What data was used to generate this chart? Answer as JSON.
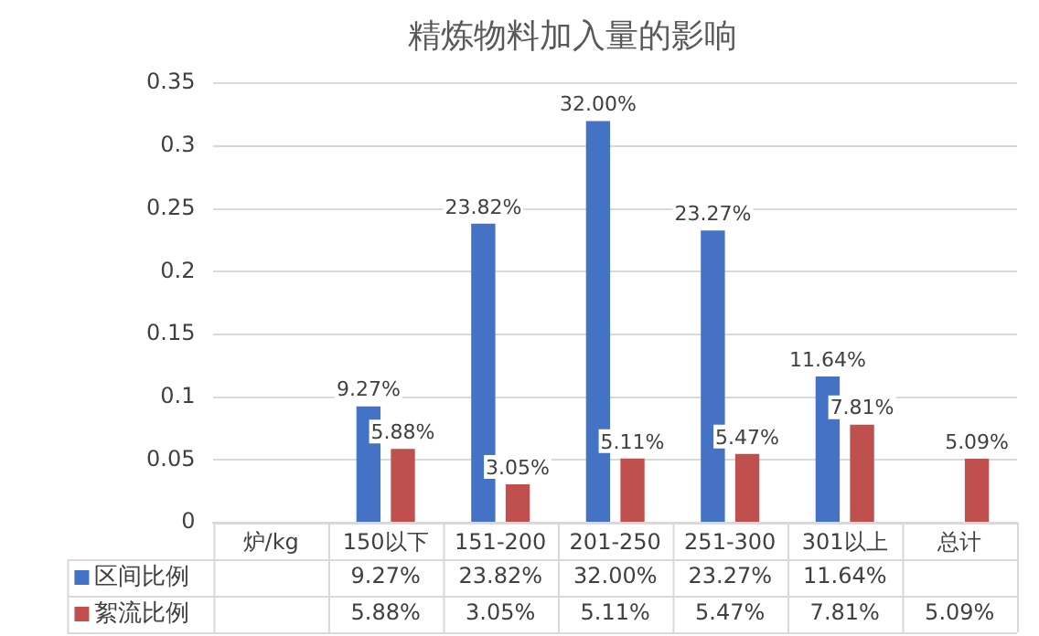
{
  "chart_data": {
    "type": "bar",
    "title": "精炼物料加入量的影响",
    "categories": [
      "炉/kg",
      "150以下",
      "151-200",
      "201-250",
      "251-300",
      "301以上",
      "总计"
    ],
    "series": [
      {
        "name": "区间比例",
        "color": "#4472c4",
        "values": [
          null,
          0.0927,
          0.2382,
          0.32,
          0.2327,
          0.1164,
          null
        ],
        "value_labels": [
          null,
          "9.27%",
          "23.82%",
          "32.00%",
          "23.27%",
          "11.64%",
          null
        ]
      },
      {
        "name": "絮流比例",
        "color": "#c0504d",
        "values": [
          null,
          0.0588,
          0.0305,
          0.0511,
          0.0547,
          0.0781,
          0.0509
        ],
        "value_labels": [
          null,
          "5.88%",
          "3.05%",
          "5.11%",
          "5.47%",
          "7.81%",
          "5.09%"
        ]
      }
    ],
    "ylim": [
      0,
      0.35
    ],
    "yticks": [
      0,
      0.05,
      0.1,
      0.15,
      0.2,
      0.25,
      0.3,
      0.35
    ],
    "grid": "y",
    "legend": "bottom"
  }
}
